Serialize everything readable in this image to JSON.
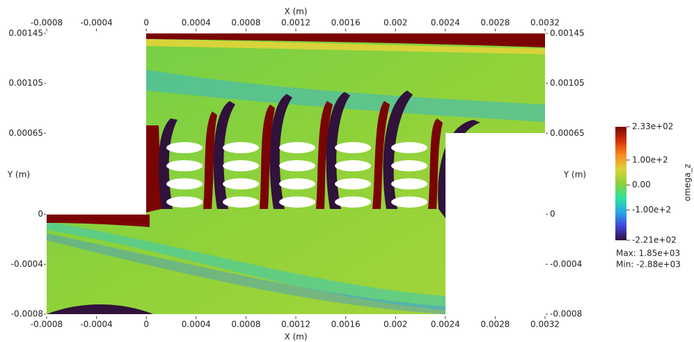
{
  "chart_data": {
    "type": "field",
    "xlabel": "X (m)",
    "ylabel": "Y (m)",
    "xlim": [
      -0.0008,
      0.0032
    ],
    "ylim": [
      -0.0008,
      0.00145
    ],
    "xticks": [
      -0.0008,
      -0.0004,
      0,
      0.0004,
      0.0008,
      0.0012,
      0.0016,
      0.002,
      0.0024,
      0.0028,
      0.0032
    ],
    "yticks": [
      0.00145,
      0.00105,
      0.00065,
      0,
      -0.0004,
      -0.0008
    ],
    "colorbar": {
      "title": "omega_z",
      "clim": [
        -221,
        233
      ],
      "ticks": [
        {
          "value": 233,
          "label": "2.33e+02"
        },
        {
          "value": 100,
          "label": "1.00e+2"
        },
        {
          "value": 0,
          "label": "0.00"
        },
        {
          "value": -100,
          "label": "-1.00e+2"
        },
        {
          "value": -221,
          "label": "-2.21e+02"
        }
      ],
      "colors": [
        "#30123b",
        "#4146d9",
        "#28a9e6",
        "#2ee39a",
        "#8bd038",
        "#d9d33a",
        "#f98c20",
        "#d23105",
        "#7a0403"
      ],
      "max_label": "Max: 1.85e+03",
      "min_label": "Min: -2.88e+03"
    }
  }
}
